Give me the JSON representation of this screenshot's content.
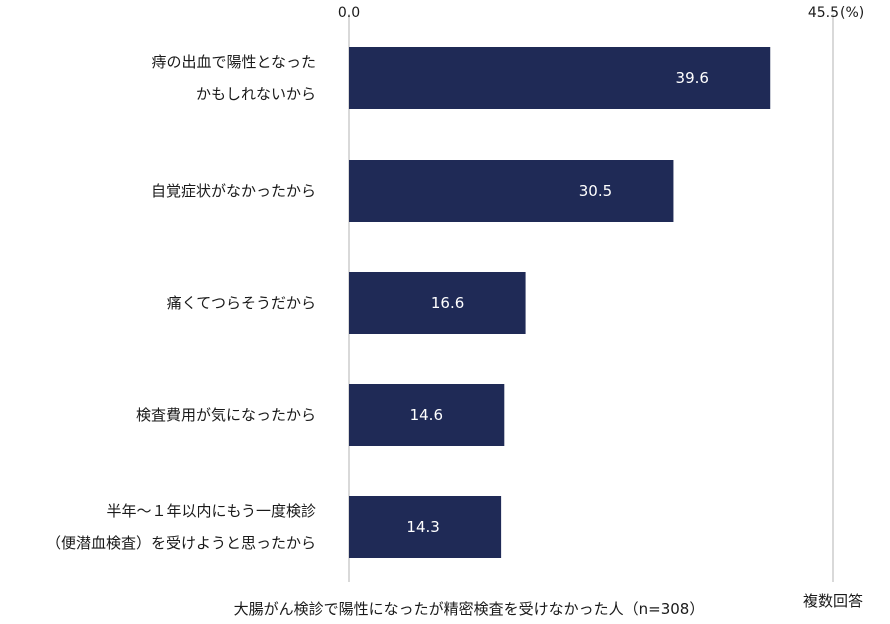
{
  "chart_data": {
    "type": "bar",
    "orientation": "horizontal",
    "categories": [
      [
        "痔の出血で陽性となった",
        "かもしれないから"
      ],
      [
        "自覚症状がなかったから"
      ],
      [
        "痛くてつらそうだから"
      ],
      [
        "検査費用が気になったから"
      ],
      [
        "半年～１年以内にもう一度検診",
        "（便潜血検査）を受けようと思ったから"
      ]
    ],
    "values": [
      39.6,
      30.5,
      16.6,
      14.6,
      14.3
    ],
    "xlim": [
      0.0,
      45.5
    ],
    "tick_labels": [
      "0.0",
      "45.5"
    ],
    "unit_label": "(%)",
    "xlabel": "大腸がん検診で陽性になったが精密検査を受けなかった人（n=308）",
    "note": "複数回答",
    "data_labels": true,
    "legend": "none",
    "grid": false,
    "colors": {
      "bar": "#1f2a56",
      "axis": "#b3b3b3",
      "value_text": "#ffffff"
    }
  }
}
